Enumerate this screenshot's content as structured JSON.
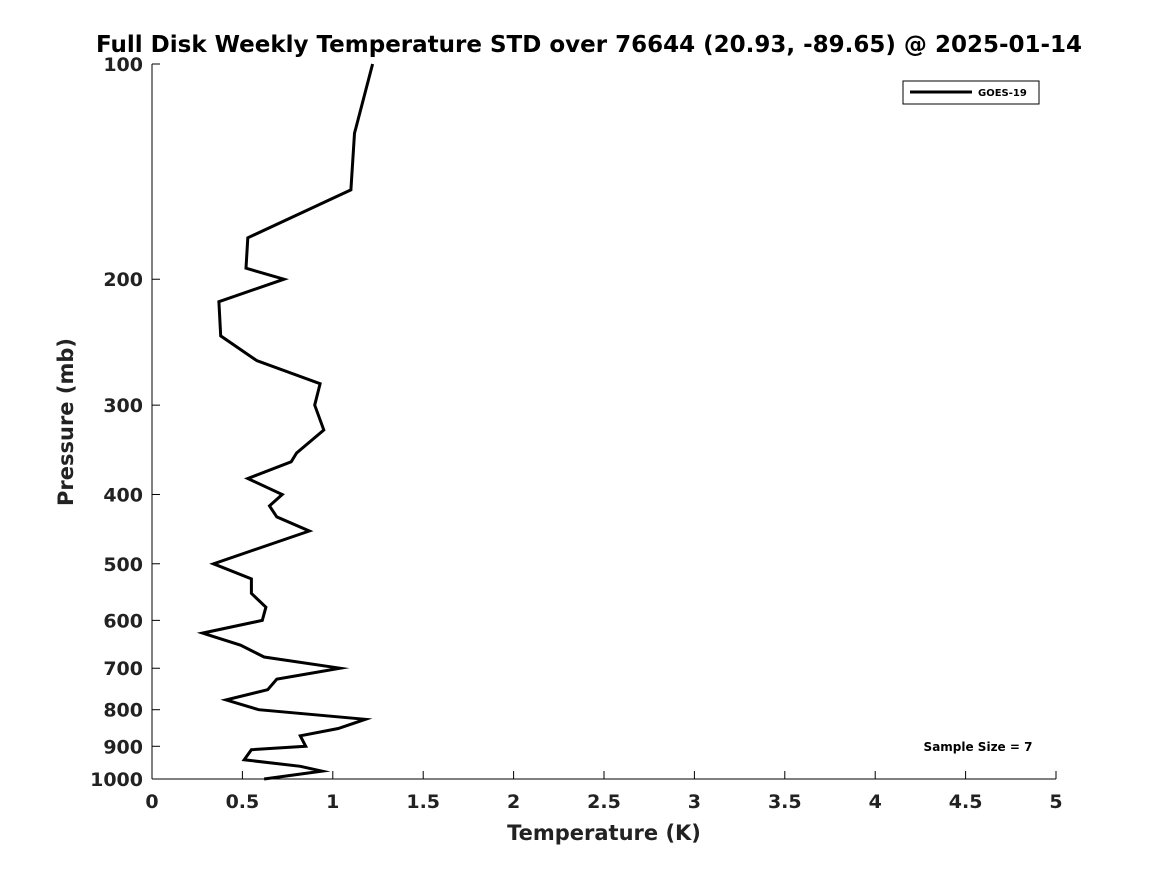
{
  "chart_data": {
    "type": "line",
    "title": "Full Disk Weekly Temperature STD over 76644 (20.93, -89.65) @ 2025-01-14",
    "xlabel": "Temperature (K)",
    "ylabel": "Pressure (mb)",
    "xlim": [
      0,
      5
    ],
    "ylim": [
      1000,
      100
    ],
    "y_scale": "log",
    "y_reversed": true,
    "grid": false,
    "x_ticks": [
      "0",
      "0.5",
      "1",
      "1.5",
      "2",
      "2.5",
      "3",
      "3.5",
      "4",
      "4.5",
      "5"
    ],
    "y_ticks": [
      "100",
      "200",
      "300",
      "400",
      "500",
      "600",
      "700",
      "800",
      "900",
      "1000"
    ],
    "legend_position": "top-right",
    "annotation": "Sample Size = 7",
    "series": [
      {
        "name": "GOES-19",
        "color": "#000000",
        "points": [
          [
            1.22,
            100
          ],
          [
            1.12,
            125
          ],
          [
            1.1,
            150
          ],
          [
            0.53,
            175
          ],
          [
            0.52,
            193
          ],
          [
            0.73,
            200
          ],
          [
            0.37,
            215
          ],
          [
            0.38,
            240
          ],
          [
            0.58,
            260
          ],
          [
            0.93,
            280
          ],
          [
            0.9,
            300
          ],
          [
            0.95,
            325
          ],
          [
            0.8,
            350
          ],
          [
            0.77,
            360
          ],
          [
            0.53,
            380
          ],
          [
            0.72,
            400
          ],
          [
            0.65,
            415
          ],
          [
            0.69,
            430
          ],
          [
            0.87,
            450
          ],
          [
            0.34,
            500
          ],
          [
            0.55,
            525
          ],
          [
            0.55,
            550
          ],
          [
            0.63,
            575
          ],
          [
            0.61,
            600
          ],
          [
            0.28,
            625
          ],
          [
            0.49,
            650
          ],
          [
            0.62,
            675
          ],
          [
            1.04,
            700
          ],
          [
            0.69,
            725
          ],
          [
            0.64,
            750
          ],
          [
            0.41,
            775
          ],
          [
            0.59,
            800
          ],
          [
            1.18,
            825
          ],
          [
            1.03,
            850
          ],
          [
            0.82,
            870
          ],
          [
            0.85,
            900
          ],
          [
            0.55,
            910
          ],
          [
            0.51,
            940
          ],
          [
            0.82,
            960
          ],
          [
            0.94,
            975
          ],
          [
            0.62,
            1000
          ]
        ]
      }
    ]
  }
}
